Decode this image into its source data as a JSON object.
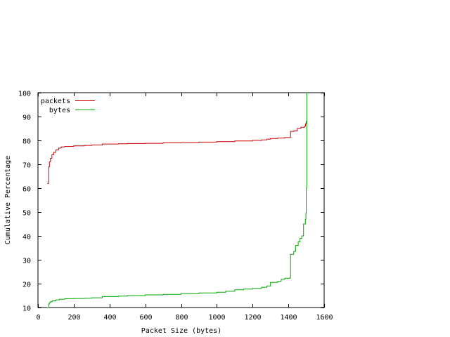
{
  "chart_data": {
    "type": "line",
    "title": "",
    "xlabel": "Packet Size (bytes)",
    "ylabel": "Cumulative Percentage",
    "xlim": [
      0,
      1600
    ],
    "ylim": [
      10,
      100
    ],
    "x_ticks": [
      0,
      200,
      400,
      600,
      800,
      1000,
      1200,
      1400,
      1600
    ],
    "y_ticks": [
      10,
      20,
      30,
      40,
      50,
      60,
      70,
      80,
      90,
      100
    ],
    "x_tick_labels": [
      "0",
      "200",
      "400",
      "600",
      "800",
      "1000",
      "1200",
      "1400",
      "1600"
    ],
    "y_tick_labels": [
      "10",
      "20",
      "30",
      "40",
      "50",
      "60",
      "70",
      "80",
      "90",
      "100"
    ],
    "grid": false,
    "legend_position": "top-left",
    "step": true,
    "series": [
      {
        "name": "packets",
        "color": "#cc0000",
        "points": [
          [
            52,
            62
          ],
          [
            56,
            62
          ],
          [
            60,
            69
          ],
          [
            64,
            71
          ],
          [
            70,
            72.5
          ],
          [
            78,
            74
          ],
          [
            88,
            75
          ],
          [
            100,
            76
          ],
          [
            115,
            76.8
          ],
          [
            130,
            77.3
          ],
          [
            150,
            77.5
          ],
          [
            200,
            77.7
          ],
          [
            260,
            77.9
          ],
          [
            300,
            78.1
          ],
          [
            360,
            78.5
          ],
          [
            450,
            78.6
          ],
          [
            500,
            78.7
          ],
          [
            600,
            78.8
          ],
          [
            700,
            79.0
          ],
          [
            800,
            79.1
          ],
          [
            900,
            79.3
          ],
          [
            1000,
            79.5
          ],
          [
            1100,
            79.8
          ],
          [
            1200,
            80.0
          ],
          [
            1250,
            80.2
          ],
          [
            1280,
            80.5
          ],
          [
            1300,
            80.8
          ],
          [
            1340,
            81.0
          ],
          [
            1380,
            81.2
          ],
          [
            1410,
            81.3
          ],
          [
            1412,
            83.8
          ],
          [
            1430,
            84.0
          ],
          [
            1450,
            85.0
          ],
          [
            1470,
            85.5
          ],
          [
            1490,
            86.0
          ],
          [
            1496,
            87.0
          ],
          [
            1500,
            88.0
          ],
          [
            1503,
            88.0
          ]
        ]
      },
      {
        "name": "bytes",
        "color": "#00aa00",
        "points": [
          [
            52,
            10
          ],
          [
            56,
            10
          ],
          [
            60,
            11.5
          ],
          [
            64,
            12
          ],
          [
            70,
            12.4
          ],
          [
            80,
            12.8
          ],
          [
            100,
            13.2
          ],
          [
            120,
            13.5
          ],
          [
            150,
            13.7
          ],
          [
            200,
            13.8
          ],
          [
            260,
            13.9
          ],
          [
            300,
            14.1
          ],
          [
            360,
            14.6
          ],
          [
            450,
            14.8
          ],
          [
            500,
            15.0
          ],
          [
            600,
            15.3
          ],
          [
            700,
            15.5
          ],
          [
            800,
            15.8
          ],
          [
            900,
            16.1
          ],
          [
            1000,
            16.4
          ],
          [
            1050,
            16.8
          ],
          [
            1100,
            17.4
          ],
          [
            1150,
            17.7
          ],
          [
            1200,
            18.0
          ],
          [
            1250,
            18.5
          ],
          [
            1280,
            19.0
          ],
          [
            1300,
            20.5
          ],
          [
            1340,
            21.0
          ],
          [
            1360,
            21.8
          ],
          [
            1380,
            22.3
          ],
          [
            1410,
            22.5
          ],
          [
            1412,
            32.3
          ],
          [
            1430,
            33.5
          ],
          [
            1440,
            36.0
          ],
          [
            1455,
            37.5
          ],
          [
            1465,
            39.0
          ],
          [
            1475,
            40.0
          ],
          [
            1485,
            45.0
          ],
          [
            1495,
            47.0
          ],
          [
            1498,
            49.5
          ],
          [
            1500,
            60.0
          ],
          [
            1503,
            100.0
          ]
        ]
      }
    ]
  }
}
